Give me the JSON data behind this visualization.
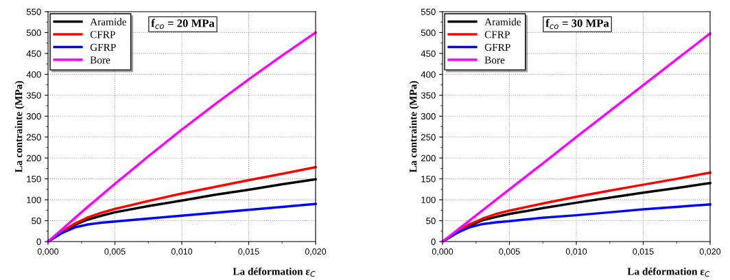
{
  "chart_data": [
    {
      "type": "line",
      "xlabel": "La déformation ε$_{C}$",
      "ylabel": "La contrainte (MPa)",
      "annotations": [
        "f$_{co}$ = 20 MPa"
      ],
      "x": [
        0,
        0.001,
        0.002,
        0.003,
        0.004,
        0.005,
        0.0075,
        0.01,
        0.0125,
        0.015,
        0.0175,
        0.02
      ],
      "series": [
        {
          "name": "Aramide",
          "color": "#000000",
          "x": [
            0,
            0.002,
            0.003,
            0.004,
            0.005,
            0.0075,
            0.01,
            0.0125,
            0.015,
            0.0175,
            0.02
          ],
          "values": [
            0,
            40,
            53,
            62,
            70,
            85,
            98,
            112,
            124,
            137,
            149
          ]
        },
        {
          "name": "CFRP",
          "color": "#ff0000",
          "values": [
            0,
            23,
            43,
            58,
            69,
            78,
            97,
            115,
            131,
            147,
            162,
            178
          ]
        },
        {
          "name": "GFRP",
          "color": "#0000ff",
          "values": [
            0,
            20,
            34,
            41,
            45,
            48,
            55,
            62,
            69,
            76,
            83,
            90
          ]
        },
        {
          "name": "Bore",
          "color": "#ff00ff",
          "values": [
            0,
            28,
            56,
            84,
            111,
            138,
            204,
            268,
            329,
            388,
            445,
            500
          ]
        }
      ],
      "xlim": [
        0,
        0.02
      ],
      "xticks": [
        {
          "value": 0,
          "label": "0,000"
        },
        {
          "value": 0.005,
          "label": "0,005"
        },
        {
          "value": 0.01,
          "label": "0,010"
        },
        {
          "value": 0.015,
          "label": "0,015"
        },
        {
          "value": 0.02,
          "label": "0,020"
        }
      ],
      "ylim": [
        0,
        550
      ],
      "yticks": [
        0,
        50,
        100,
        150,
        200,
        250,
        300,
        350,
        400,
        450,
        500,
        550
      ],
      "grid": true,
      "legend": "top left",
      "line_style": "solid"
    },
    {
      "type": "line",
      "xlabel": "La déformation ε$_{C}$",
      "ylabel": "La contrainte (MPa)",
      "annotations": [
        "f$_{co}$ = 30 MPa"
      ],
      "x": [
        0,
        0.001,
        0.002,
        0.003,
        0.004,
        0.005,
        0.0075,
        0.01,
        0.0125,
        0.015,
        0.0175,
        0.02
      ],
      "series": [
        {
          "name": "Aramide",
          "color": "#000000",
          "x": [
            0,
            0.002,
            0.003,
            0.004,
            0.005,
            0.0075,
            0.01,
            0.0125,
            0.015,
            0.0175,
            0.02
          ],
          "values": [
            0,
            38,
            51,
            59,
            66,
            80,
            93,
            105,
            117,
            128,
            140
          ]
        },
        {
          "name": "CFRP",
          "color": "#ff0000",
          "values": [
            0,
            21,
            41,
            55,
            66,
            74,
            91,
            107,
            122,
            136,
            150,
            165
          ]
        },
        {
          "name": "GFRP",
          "color": "#0000ff",
          "values": [
            0,
            20,
            34,
            42,
            46,
            49,
            57,
            63,
            70,
            77,
            83,
            89
          ]
        },
        {
          "name": "Bore",
          "color": "#ff00ff",
          "values": [
            0,
            25,
            50,
            75,
            100,
            125,
            187,
            250,
            312,
            374,
            436,
            498
          ]
        }
      ],
      "xlim": [
        0,
        0.02
      ],
      "xticks": [
        {
          "value": 0,
          "label": "0,000"
        },
        {
          "value": 0.005,
          "label": "0,005"
        },
        {
          "value": 0.01,
          "label": "0,010"
        },
        {
          "value": 0.015,
          "label": "0,015"
        },
        {
          "value": 0.02,
          "label": "0,020"
        }
      ],
      "ylim": [
        0,
        550
      ],
      "yticks": [
        0,
        50,
        100,
        150,
        200,
        250,
        300,
        350,
        400,
        450,
        500,
        550
      ],
      "grid": true,
      "legend": "top left",
      "line_style": "solid"
    }
  ]
}
